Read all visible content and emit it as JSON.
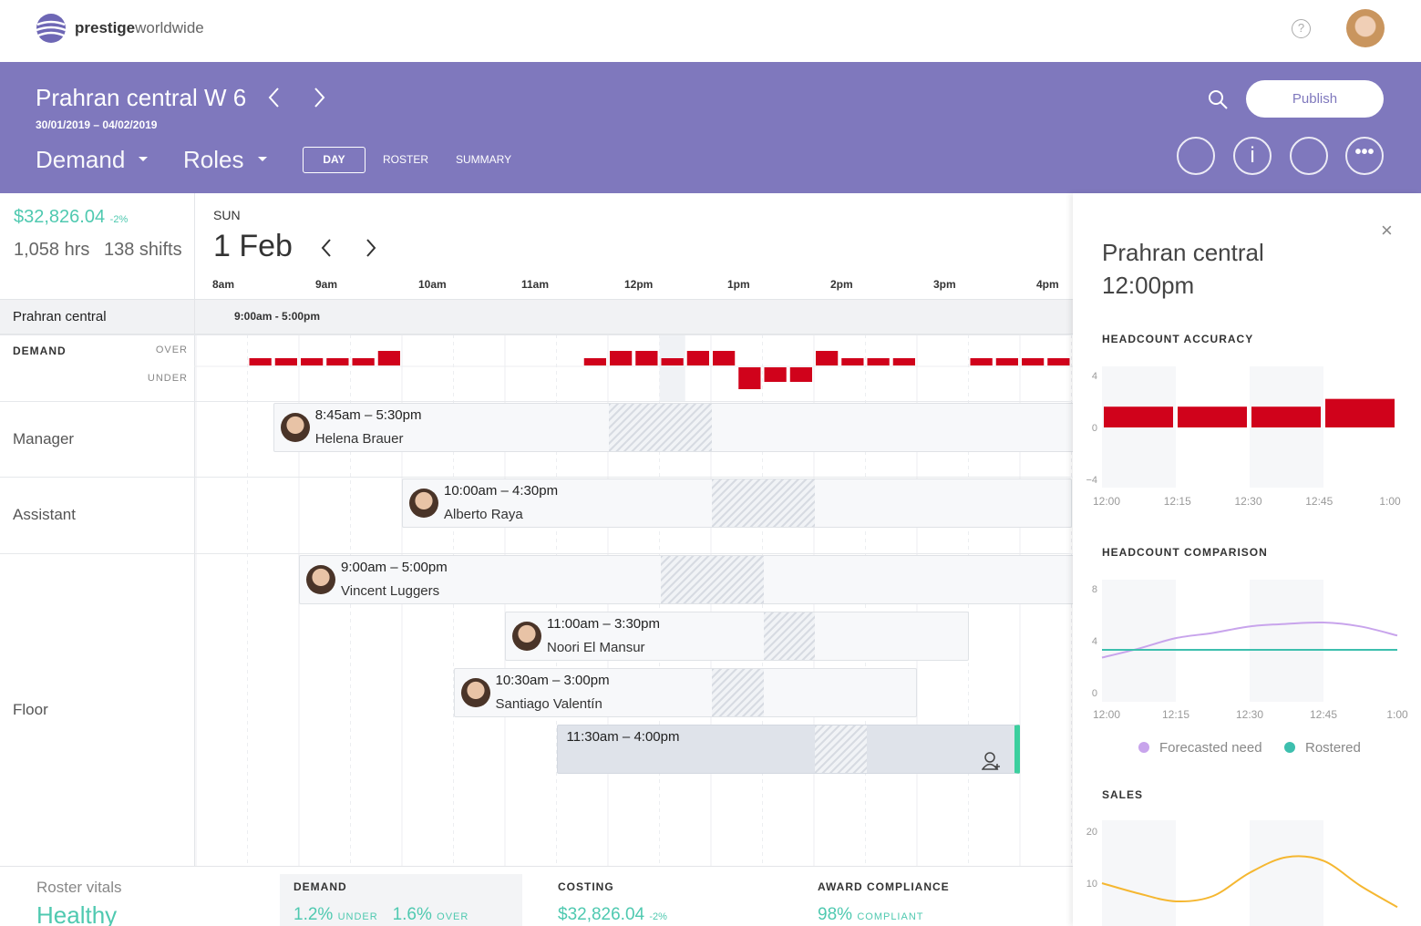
{
  "brand": {
    "name": "prestige",
    "suffix": "worldwide"
  },
  "header": {
    "title": "Prahran central W 6",
    "dates": "30/01/2019 – 04/02/2019",
    "menus": [
      "Demand",
      "Roles"
    ],
    "tabs": [
      "DAY",
      "ROSTER",
      "SUMMARY"
    ],
    "publish": "Publish"
  },
  "summary": {
    "cost": "$32,826.04",
    "change": "-2%",
    "hours": "1,058 hrs",
    "shifts": "138 shifts"
  },
  "day": {
    "weekday": "SUN",
    "date": "1 Feb"
  },
  "hours": [
    "8am",
    "9am",
    "10am",
    "11am",
    "12pm",
    "1pm",
    "2pm",
    "3pm",
    "4pm"
  ],
  "location": {
    "name": "Prahran central",
    "open": "9:00am - 5:00pm"
  },
  "demand": {
    "label": "DEMAND",
    "over": "OVER",
    "under": "UNDER",
    "color": "#d0021b",
    "values": [
      null,
      null,
      1,
      1,
      1,
      1,
      1,
      2,
      null,
      null,
      null,
      null,
      null,
      null,
      null,
      1,
      2,
      2,
      1,
      2,
      2,
      -3,
      -2,
      -2,
      2,
      1,
      1,
      1,
      null,
      null,
      1,
      1,
      1,
      1
    ]
  },
  "roles": [
    {
      "name": "Manager",
      "shifts": [
        {
          "time": "8:45am – 5:30pm",
          "name": "Helena Brauer",
          "break": [
            12,
            13
          ]
        }
      ]
    },
    {
      "name": "Assistant",
      "shifts": [
        {
          "time": "10:00am – 4:30pm",
          "name": "Alberto Raya",
          "break": [
            13,
            14
          ]
        }
      ]
    },
    {
      "name": "Floor",
      "shifts": [
        {
          "time": "9:00am – 5:00pm",
          "name": "Vincent Luggers",
          "break": [
            12.5,
            13.5
          ]
        },
        {
          "time": "11:00am – 3:30pm",
          "name": "Noori El Mansur",
          "break": [
            13.5,
            14
          ]
        },
        {
          "time": "10:30am – 3:00pm",
          "name": "Santiago Valentín",
          "break": [
            13,
            13.5
          ]
        },
        {
          "time": "11:30am – 4:00pm",
          "break": [
            14,
            14.5
          ]
        }
      ]
    }
  ],
  "panel": {
    "title": "Prahran central",
    "time": "12:00pm",
    "charts": [
      {
        "type": "bar",
        "title": "HEADCOUNT ACCURACY",
        "xticks": [
          "12:00",
          "12:15",
          "12:30",
          "12:45",
          "1:00"
        ],
        "values": [
          1.6,
          1.6,
          1.6,
          2.2
        ],
        "color": "#d0021b",
        "ylim": [
          -4,
          4
        ],
        "yticks": [
          {
            "value": -4,
            "label": "−4"
          },
          0,
          4
        ]
      },
      {
        "type": "line",
        "title": "HEADCOUNT COMPARISON",
        "categories": [
          "12:00",
          null,
          "12:15",
          null,
          "12:30",
          null,
          "12:45",
          null,
          "1:00"
        ],
        "series": [
          {
            "name": "Forecasted need",
            "color": "#c8a4ec",
            "values": [
              2.7,
              3.4,
              4.2,
              4.6,
              5.1,
              5.3,
              5.4,
              5.1,
              4.4
            ]
          },
          {
            "name": "Rostered",
            "color": "#3dbfae",
            "values": [
              3.3,
              3.3,
              3.3,
              3.3,
              3.3,
              3.3,
              3.3,
              3.3,
              3.3
            ]
          }
        ],
        "ylim": [
          0,
          8
        ],
        "yticks": [
          0,
          4,
          8
        ]
      },
      {
        "type": "line",
        "title": "SALES",
        "series": [
          {
            "color": "#f5b731",
            "values": [
              10,
              8,
              6.5,
              7.5,
              12,
              15,
              14.3,
              9.5,
              5.4
            ]
          }
        ],
        "ylim": [
          0,
          20
        ],
        "yticks": [
          10,
          20
        ]
      }
    ]
  },
  "footer": {
    "vitals": "Roster vitals",
    "status": "Healthy",
    "demand": {
      "title": "DEMAND",
      "under": "1.2%",
      "under_label": "UNDER",
      "over": "1.6%",
      "over_label": "OVER"
    },
    "costing": {
      "title": "COSTING",
      "value": "$32,826.04",
      "change": "-2%"
    },
    "compliance": {
      "title": "AWARD COMPLIANCE",
      "value": "98%",
      "label": "COMPLIANT"
    }
  }
}
